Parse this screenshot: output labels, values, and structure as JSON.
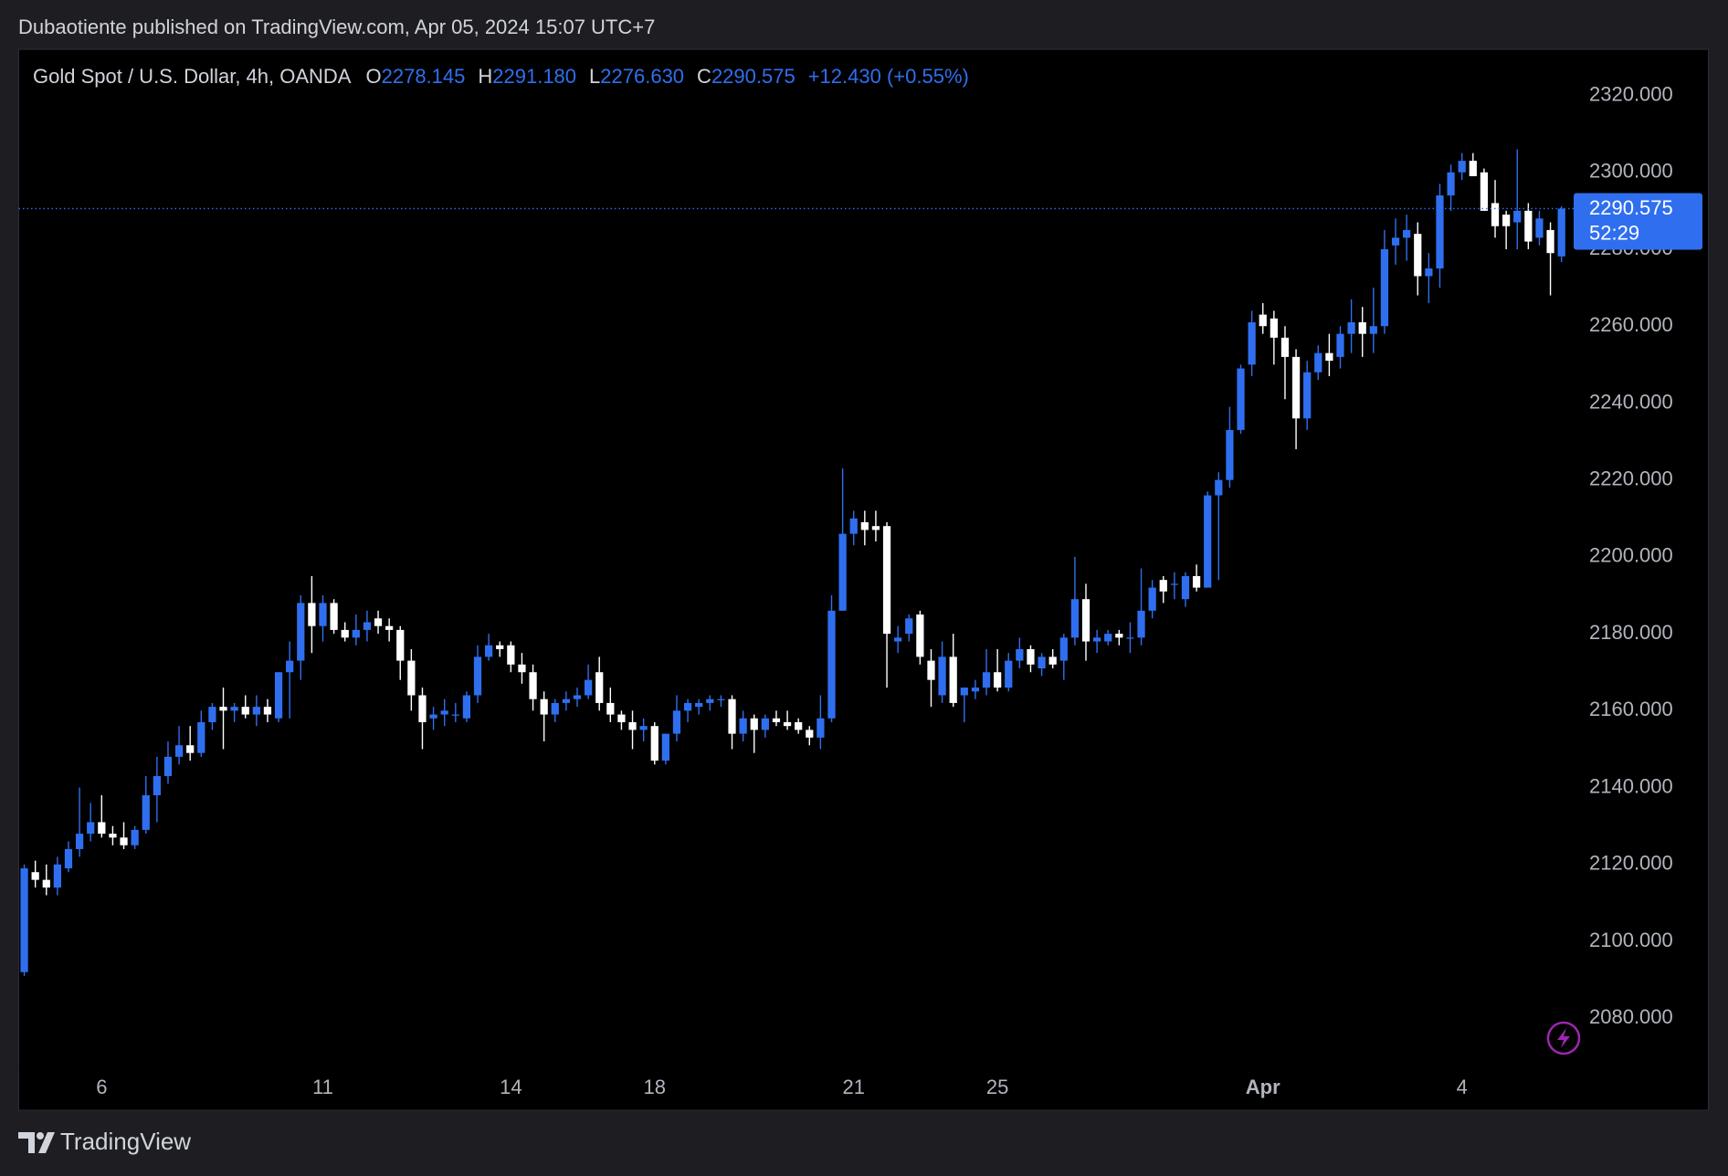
{
  "published": "Dubaotiente published on TradingView.com, Apr 05, 2024 15:07 UTC+7",
  "brand": "TradingView",
  "chart_data": {
    "type": "candlestick",
    "title": "Gold Spot / U.S. Dollar, 4h, OANDA",
    "ohlc_legend": [
      {
        "key": "O",
        "text": "2278.145"
      },
      {
        "key": "H",
        "text": "2291.180"
      },
      {
        "key": "L",
        "text": "2276.630"
      },
      {
        "key": "C",
        "text": "2290.575"
      }
    ],
    "change": "+12.430 (+0.55%)",
    "countdown": "52:29",
    "up_color": "#2f6fef",
    "down_color": "#ffffff",
    "price_line": true,
    "grid": false,
    "xlim": [
      -0.5,
      140.1
    ],
    "xticks": [
      {
        "value": 7,
        "label": "6"
      },
      {
        "value": 27,
        "label": "11"
      },
      {
        "value": 44,
        "label": "14"
      },
      {
        "value": 57,
        "label": "18"
      },
      {
        "value": 75,
        "label": "21"
      },
      {
        "value": 88,
        "label": "25"
      },
      {
        "value": 112,
        "label": "Apr"
      },
      {
        "value": 130,
        "label": "4"
      }
    ],
    "ylim": [
      2067,
      2332
    ],
    "yticks": [
      {
        "value": 2080,
        "label": "2080.000"
      },
      {
        "value": 2100,
        "label": "2100.000"
      },
      {
        "value": 2120,
        "label": "2120.000"
      },
      {
        "value": 2140,
        "label": "2140.000"
      },
      {
        "value": 2160,
        "label": "2160.000"
      },
      {
        "value": 2180,
        "label": "2180.000"
      },
      {
        "value": 2200,
        "label": "2200.000"
      },
      {
        "value": 2220,
        "label": "2220.000"
      },
      {
        "value": 2240,
        "label": "2240.000"
      },
      {
        "value": 2260,
        "label": "2260.000"
      },
      {
        "value": 2280,
        "label": "2280.000"
      },
      {
        "value": 2300,
        "label": "2300.000"
      },
      {
        "value": 2320,
        "label": "2320.000"
      }
    ],
    "open": [
      2092,
      2118,
      2116,
      2114,
      2119,
      2124,
      2128,
      2131,
      2128,
      2127,
      2125,
      2129,
      2138,
      2143,
      2148,
      2151,
      2149,
      2157,
      2161,
      2160,
      2161,
      2159,
      2161,
      2158,
      2170,
      2173,
      2188,
      2182,
      2188,
      2181,
      2179,
      2181,
      2184,
      2182,
      2181,
      2173,
      2164,
      2158,
      2159,
      2159,
      2158,
      2164,
      2174,
      2177,
      2177,
      2172,
      2170,
      2163,
      2159,
      2162,
      2163,
      2164,
      2170,
      2162,
      2159,
      2157,
      2155,
      2156,
      2147,
      2154,
      2160,
      2161,
      2162,
      2163,
      2163,
      2154,
      2158,
      2155,
      2158,
      2157,
      2157,
      2155,
      2153,
      2158,
      2186,
      2206,
      2209,
      2208,
      2208,
      2178,
      2180,
      2185,
      2173,
      2164,
      2174,
      2164,
      2165,
      2166,
      2170,
      2166,
      2173,
      2176,
      2171,
      2174,
      2173,
      2179,
      2189,
      2178,
      2178,
      2180,
      2179,
      2179,
      2186,
      2194,
      2193,
      2189,
      2195,
      2192,
      2216,
      2220,
      2233,
      2250,
      2263,
      2262,
      2257,
      2252,
      2236,
      2248,
      2253,
      2252,
      2258,
      2261,
      2258,
      2260,
      2281,
      2283,
      2284,
      2273,
      2275,
      2294,
      2300,
      2303,
      2300,
      2292,
      2289,
      2287,
      2290,
      2283,
      2285,
      2278.145
    ],
    "high": [
      2120,
      2121,
      2120,
      2122,
      2126,
      2140,
      2136,
      2138,
      2130,
      2131,
      2130,
      2143,
      2148,
      2152,
      2156,
      2156,
      2160,
      2162,
      2166,
      2162,
      2164,
      2164,
      2163,
      2170,
      2178,
      2190,
      2195,
      2190,
      2189,
      2183,
      2185,
      2186,
      2186,
      2184,
      2182,
      2176,
      2166,
      2161,
      2163,
      2162,
      2165,
      2177,
      2180,
      2178,
      2178,
      2175,
      2172,
      2165,
      2163,
      2165,
      2166,
      2172,
      2174,
      2166,
      2160,
      2160,
      2158,
      2157,
      2154,
      2164,
      2163,
      2163,
      2164,
      2164,
      2164,
      2160,
      2159,
      2159,
      2160,
      2160,
      2158,
      2156,
      2164,
      2190,
      2223,
      2212,
      2212,
      2212,
      2209,
      2182,
      2185,
      2186,
      2176,
      2178,
      2180,
      2166,
      2168,
      2176,
      2176,
      2175,
      2179,
      2177,
      2175,
      2176,
      2180,
      2200,
      2193,
      2181,
      2181,
      2181,
      2183,
      2197,
      2194,
      2195,
      2196,
      2196,
      2198,
      2217,
      2222,
      2239,
      2250,
      2264,
      2266,
      2264,
      2260,
      2254,
      2251,
      2255,
      2258,
      2260,
      2267,
      2265,
      2270,
      2285,
      2288,
      2289,
      2287,
      2279,
      2297,
      2302,
      2305,
      2305,
      2301,
      2298,
      2290,
      2306,
      2292,
      2290,
      2287,
      2291.18
    ],
    "low": [
      2091,
      2114,
      2112,
      2112,
      2118,
      2122,
      2126,
      2127,
      2125,
      2124,
      2124,
      2128,
      2131,
      2141,
      2146,
      2147,
      2148,
      2155,
      2150,
      2157,
      2158,
      2156,
      2157,
      2157,
      2158,
      2168,
      2175,
      2178,
      2180,
      2178,
      2177,
      2178,
      2180,
      2178,
      2168,
      2160,
      2150,
      2155,
      2156,
      2157,
      2157,
      2162,
      2173,
      2174,
      2170,
      2167,
      2160,
      2152,
      2157,
      2160,
      2161,
      2163,
      2160,
      2157,
      2155,
      2150,
      2152,
      2146,
      2146,
      2152,
      2157,
      2159,
      2160,
      2161,
      2150,
      2152,
      2149,
      2153,
      2156,
      2155,
      2154,
      2151,
      2150,
      2157,
      2186,
      2203,
      2203,
      2204,
      2166,
      2175,
      2178,
      2172,
      2161,
      2162,
      2161,
      2157,
      2163,
      2164,
      2165,
      2165,
      2171,
      2170,
      2169,
      2171,
      2168,
      2177,
      2173,
      2175,
      2177,
      2177,
      2175,
      2177,
      2184,
      2188,
      2189,
      2187,
      2191,
      2192,
      2194,
      2218,
      2232,
      2247,
      2258,
      2250,
      2241,
      2228,
      2233,
      2246,
      2247,
      2249,
      2253,
      2252,
      2253,
      2258,
      2276,
      2277,
      2268,
      2266,
      2270,
      2290,
      2298,
      2299,
      2290,
      2283,
      2280,
      2280,
      2280,
      2281,
      2268,
      2276.63
    ],
    "close": [
      2119,
      2116,
      2114,
      2120,
      2124,
      2128,
      2131,
      2128,
      2127,
      2125,
      2129,
      2138,
      2143,
      2148,
      2151,
      2149,
      2157,
      2161,
      2160,
      2161,
      2159,
      2161,
      2159,
      2170,
      2173,
      2188,
      2182,
      2188,
      2181,
      2179,
      2181,
      2183,
      2182,
      2181,
      2173,
      2164,
      2157,
      2159,
      2160,
      2159,
      2164,
      2174,
      2177,
      2176,
      2172,
      2170,
      2163,
      2159,
      2162,
      2163,
      2164,
      2168,
      2162,
      2159,
      2157,
      2155,
      2156,
      2147,
      2154,
      2160,
      2162,
      2162,
      2163,
      2163,
      2154,
      2158,
      2155,
      2158,
      2157,
      2156,
      2155,
      2153,
      2158,
      2186,
      2206,
      2210,
      2207,
      2207,
      2180,
      2179,
      2184,
      2174,
      2168,
      2174,
      2162,
      2166,
      2166,
      2170,
      2166,
      2173,
      2176,
      2172,
      2174,
      2172,
      2179,
      2189,
      2178,
      2179,
      2180,
      2179,
      2179,
      2186,
      2192,
      2191,
      2193,
      2195,
      2192,
      2216,
      2220,
      2233,
      2249,
      2261,
      2260,
      2257,
      2252,
      2236,
      2248,
      2253,
      2251,
      2258,
      2261,
      2258,
      2260,
      2280,
      2283,
      2285,
      2273,
      2275,
      2294,
      2300,
      2303,
      2299,
      2290,
      2286,
      2286,
      2290,
      2282,
      2288,
      2279,
      2290.575
    ]
  }
}
